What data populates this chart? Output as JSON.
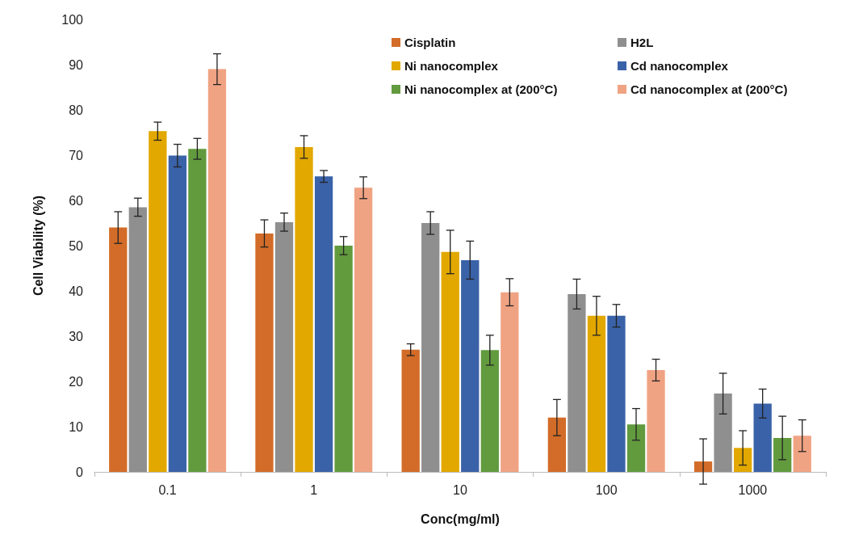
{
  "chart_data": {
    "type": "bar",
    "xlabel": "Conc(mg/ml)",
    "ylabel": "Cell Viability (%)",
    "categories": [
      "0.1",
      "1",
      "10",
      "100",
      "1000"
    ],
    "series": [
      {
        "name": "Cisplatin",
        "color": "#d36c28",
        "values": [
          54,
          52.7,
          27,
          12,
          2.3
        ],
        "errors": [
          3.5,
          3,
          1.3,
          4,
          5
        ]
      },
      {
        "name": "H2L",
        "color": "#8f8f8f",
        "values": [
          58.5,
          55.2,
          55,
          39.3,
          17.3
        ],
        "errors": [
          2,
          2,
          2.5,
          3.3,
          4.5
        ]
      },
      {
        "name": "Ni nanocomplex",
        "color": "#e2a800",
        "values": [
          75.3,
          71.8,
          48.6,
          34.5,
          5.3
        ],
        "errors": [
          2,
          2.5,
          4.8,
          4.3,
          3.8
        ]
      },
      {
        "name": "Cd nanocomplex",
        "color": "#3a62a8",
        "values": [
          69.9,
          65.3,
          46.8,
          34.5,
          15.1
        ],
        "errors": [
          2.5,
          1.3,
          4.2,
          2.5,
          3.2
        ]
      },
      {
        "name": "Ni nanocomplex at (200°C)",
        "color": "#629a3e",
        "values": [
          71.4,
          50,
          26.9,
          10.5,
          7.5
        ],
        "errors": [
          2.3,
          2,
          3.3,
          3.5,
          4.8
        ]
      },
      {
        "name": "Cd nanocomplex at (200°C)",
        "color": "#f0a383",
        "values": [
          89,
          62.8,
          39.7,
          22.5,
          8
        ],
        "errors": [
          3.4,
          2.4,
          3,
          2.4,
          3.5
        ]
      }
    ],
    "ylim": [
      0,
      100
    ],
    "yticks": [
      0,
      10,
      20,
      30,
      40,
      50,
      60,
      70,
      80,
      90,
      100
    ],
    "grid": false,
    "legend": "top right"
  }
}
